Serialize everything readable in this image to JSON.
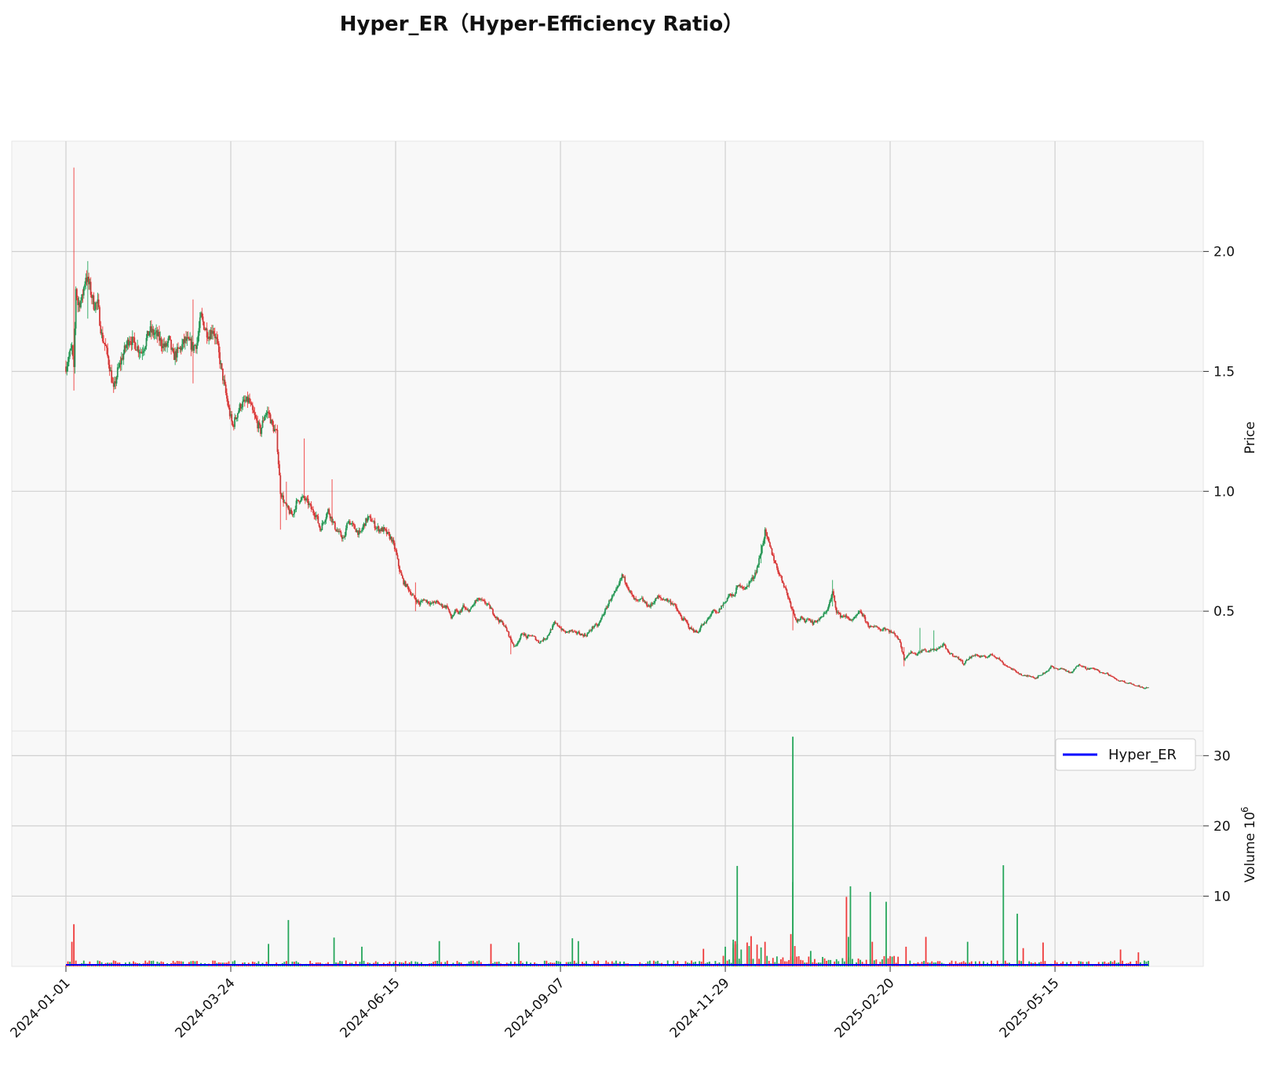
{
  "chart_data": {
    "type": "candlestick",
    "title": "Hyper_ER（Hyper-Efficiency Ratio）",
    "price_panel": {
      "ylabel": "Price",
      "yticks": [
        0.5,
        1.0,
        1.5,
        2.0
      ],
      "ylim": [
        0.0,
        2.46
      ],
      "grid": true
    },
    "volume_panel": {
      "ylabel": "Volume  10",
      "ylabel_exponent": "6",
      "yticks": [
        10,
        20,
        30
      ],
      "ylim": [
        0,
        33.5
      ],
      "grid": true
    },
    "x_ticks": [
      "2024-01-01",
      "2024-03-24",
      "2024-06-15",
      "2024-09-07",
      "2024-11-29",
      "2025-02-20",
      "2025-05-15"
    ],
    "x_range_days": [
      0,
      545
    ],
    "legend": {
      "position": "right",
      "entries": [
        {
          "label": "Hyper_ER",
          "color": "#0000ff"
        }
      ]
    },
    "colors": {
      "up": "#26a65b",
      "down": "#ef3b3b",
      "grid": "#d0d0d0",
      "panel_bg": "#f8f8f8"
    },
    "price_path": [
      [
        0,
        1.52
      ],
      [
        3,
        1.6
      ],
      [
        4,
        1.5
      ],
      [
        5,
        1.85
      ],
      [
        6,
        1.78
      ],
      [
        8,
        1.8
      ],
      [
        10,
        1.9
      ],
      [
        12,
        1.85
      ],
      [
        14,
        1.78
      ],
      [
        16,
        1.78
      ],
      [
        18,
        1.65
      ],
      [
        20,
        1.6
      ],
      [
        22,
        1.52
      ],
      [
        24,
        1.42
      ],
      [
        26,
        1.5
      ],
      [
        28,
        1.55
      ],
      [
        30,
        1.6
      ],
      [
        32,
        1.64
      ],
      [
        34,
        1.62
      ],
      [
        36,
        1.6
      ],
      [
        38,
        1.58
      ],
      [
        40,
        1.62
      ],
      [
        42,
        1.67
      ],
      [
        44,
        1.66
      ],
      [
        46,
        1.65
      ],
      [
        48,
        1.62
      ],
      [
        50,
        1.6
      ],
      [
        52,
        1.63
      ],
      [
        54,
        1.56
      ],
      [
        56,
        1.58
      ],
      [
        58,
        1.6
      ],
      [
        60,
        1.63
      ],
      [
        62,
        1.62
      ],
      [
        64,
        1.6
      ],
      [
        66,
        1.62
      ],
      [
        68,
        1.73
      ],
      [
        70,
        1.68
      ],
      [
        72,
        1.65
      ],
      [
        74,
        1.68
      ],
      [
        76,
        1.62
      ],
      [
        78,
        1.52
      ],
      [
        80,
        1.43
      ],
      [
        82,
        1.34
      ],
      [
        84,
        1.27
      ],
      [
        86,
        1.32
      ],
      [
        88,
        1.36
      ],
      [
        90,
        1.37
      ],
      [
        92,
        1.38
      ],
      [
        94,
        1.33
      ],
      [
        96,
        1.29
      ],
      [
        98,
        1.25
      ],
      [
        100,
        1.32
      ],
      [
        102,
        1.33
      ],
      [
        104,
        1.27
      ],
      [
        106,
        1.24
      ],
      [
        108,
        1.0
      ],
      [
        110,
        0.95
      ],
      [
        112,
        0.92
      ],
      [
        114,
        0.9
      ],
      [
        116,
        0.95
      ],
      [
        118,
        0.97
      ],
      [
        120,
        0.97
      ],
      [
        122,
        0.95
      ],
      [
        124,
        0.92
      ],
      [
        126,
        0.9
      ],
      [
        128,
        0.84
      ],
      [
        130,
        0.88
      ],
      [
        132,
        0.92
      ],
      [
        134,
        0.88
      ],
      [
        136,
        0.84
      ],
      [
        138,
        0.82
      ],
      [
        140,
        0.8
      ],
      [
        142,
        0.88
      ],
      [
        144,
        0.86
      ],
      [
        146,
        0.84
      ],
      [
        148,
        0.82
      ],
      [
        150,
        0.86
      ],
      [
        152,
        0.89
      ],
      [
        154,
        0.88
      ],
      [
        156,
        0.85
      ],
      [
        158,
        0.84
      ],
      [
        160,
        0.84
      ],
      [
        162,
        0.82
      ],
      [
        164,
        0.8
      ],
      [
        166,
        0.75
      ],
      [
        168,
        0.67
      ],
      [
        170,
        0.62
      ],
      [
        172,
        0.6
      ],
      [
        174,
        0.57
      ],
      [
        176,
        0.55
      ],
      [
        178,
        0.53
      ],
      [
        180,
        0.55
      ],
      [
        182,
        0.54
      ],
      [
        184,
        0.53
      ],
      [
        186,
        0.54
      ],
      [
        188,
        0.53
      ],
      [
        190,
        0.52
      ],
      [
        192,
        0.52
      ],
      [
        194,
        0.47
      ],
      [
        196,
        0.5
      ],
      [
        198,
        0.49
      ],
      [
        200,
        0.52
      ],
      [
        202,
        0.5
      ],
      [
        204,
        0.51
      ],
      [
        206,
        0.54
      ],
      [
        208,
        0.55
      ],
      [
        210,
        0.54
      ],
      [
        212,
        0.53
      ],
      [
        214,
        0.51
      ],
      [
        216,
        0.48
      ],
      [
        218,
        0.46
      ],
      [
        220,
        0.45
      ],
      [
        222,
        0.42
      ],
      [
        224,
        0.38
      ],
      [
        226,
        0.35
      ],
      [
        228,
        0.38
      ],
      [
        230,
        0.41
      ],
      [
        232,
        0.39
      ],
      [
        234,
        0.4
      ],
      [
        236,
        0.39
      ],
      [
        238,
        0.37
      ],
      [
        240,
        0.38
      ],
      [
        242,
        0.39
      ],
      [
        244,
        0.42
      ],
      [
        246,
        0.45
      ],
      [
        248,
        0.44
      ],
      [
        250,
        0.42
      ],
      [
        252,
        0.41
      ],
      [
        254,
        0.42
      ],
      [
        256,
        0.41
      ],
      [
        258,
        0.41
      ],
      [
        260,
        0.4
      ],
      [
        262,
        0.4
      ],
      [
        264,
        0.42
      ],
      [
        266,
        0.44
      ],
      [
        268,
        0.44
      ],
      [
        270,
        0.48
      ],
      [
        272,
        0.51
      ],
      [
        274,
        0.55
      ],
      [
        276,
        0.57
      ],
      [
        278,
        0.6
      ],
      [
        280,
        0.65
      ],
      [
        282,
        0.62
      ],
      [
        284,
        0.58
      ],
      [
        286,
        0.55
      ],
      [
        288,
        0.54
      ],
      [
        290,
        0.55
      ],
      [
        292,
        0.53
      ],
      [
        294,
        0.52
      ],
      [
        296,
        0.54
      ],
      [
        298,
        0.56
      ],
      [
        300,
        0.55
      ],
      [
        302,
        0.55
      ],
      [
        304,
        0.54
      ],
      [
        306,
        0.53
      ],
      [
        308,
        0.5
      ],
      [
        310,
        0.47
      ],
      [
        312,
        0.46
      ],
      [
        314,
        0.43
      ],
      [
        316,
        0.42
      ],
      [
        318,
        0.41
      ],
      [
        320,
        0.44
      ],
      [
        322,
        0.45
      ],
      [
        324,
        0.48
      ],
      [
        326,
        0.5
      ],
      [
        328,
        0.49
      ],
      [
        330,
        0.52
      ],
      [
        332,
        0.54
      ],
      [
        334,
        0.57
      ],
      [
        336,
        0.56
      ],
      [
        338,
        0.6
      ],
      [
        340,
        0.61
      ],
      [
        342,
        0.59
      ],
      [
        344,
        0.62
      ],
      [
        346,
        0.64
      ],
      [
        348,
        0.68
      ],
      [
        350,
        0.75
      ],
      [
        352,
        0.83
      ],
      [
        354,
        0.78
      ],
      [
        356,
        0.73
      ],
      [
        358,
        0.68
      ],
      [
        360,
        0.64
      ],
      [
        362,
        0.6
      ],
      [
        364,
        0.55
      ],
      [
        366,
        0.5
      ],
      [
        368,
        0.46
      ],
      [
        370,
        0.47
      ],
      [
        372,
        0.46
      ],
      [
        374,
        0.47
      ],
      [
        376,
        0.45
      ],
      [
        378,
        0.46
      ],
      [
        380,
        0.47
      ],
      [
        382,
        0.49
      ],
      [
        384,
        0.52
      ],
      [
        386,
        0.58
      ],
      [
        388,
        0.5
      ],
      [
        390,
        0.48
      ],
      [
        392,
        0.48
      ],
      [
        394,
        0.47
      ],
      [
        396,
        0.46
      ],
      [
        398,
        0.48
      ],
      [
        400,
        0.5
      ],
      [
        402,
        0.47
      ],
      [
        404,
        0.44
      ],
      [
        406,
        0.43
      ],
      [
        408,
        0.44
      ],
      [
        410,
        0.42
      ],
      [
        412,
        0.43
      ],
      [
        414,
        0.42
      ],
      [
        416,
        0.41
      ],
      [
        418,
        0.4
      ],
      [
        420,
        0.37
      ],
      [
        422,
        0.3
      ],
      [
        424,
        0.32
      ],
      [
        426,
        0.33
      ],
      [
        428,
        0.32
      ],
      [
        430,
        0.33
      ],
      [
        432,
        0.34
      ],
      [
        434,
        0.33
      ],
      [
        436,
        0.34
      ],
      [
        438,
        0.34
      ],
      [
        440,
        0.35
      ],
      [
        442,
        0.36
      ],
      [
        444,
        0.33
      ],
      [
        446,
        0.32
      ],
      [
        448,
        0.31
      ],
      [
        450,
        0.3
      ],
      [
        452,
        0.28
      ],
      [
        454,
        0.3
      ],
      [
        456,
        0.31
      ],
      [
        458,
        0.32
      ],
      [
        460,
        0.31
      ],
      [
        462,
        0.31
      ],
      [
        464,
        0.31
      ],
      [
        466,
        0.32
      ],
      [
        468,
        0.31
      ],
      [
        470,
        0.3
      ],
      [
        472,
        0.28
      ],
      [
        474,
        0.27
      ],
      [
        476,
        0.26
      ],
      [
        478,
        0.25
      ],
      [
        480,
        0.24
      ],
      [
        482,
        0.23
      ],
      [
        484,
        0.23
      ],
      [
        486,
        0.23
      ],
      [
        488,
        0.22
      ],
      [
        490,
        0.23
      ],
      [
        492,
        0.24
      ],
      [
        494,
        0.25
      ],
      [
        496,
        0.27
      ],
      [
        498,
        0.26
      ],
      [
        500,
        0.26
      ],
      [
        502,
        0.26
      ],
      [
        504,
        0.25
      ],
      [
        506,
        0.24
      ],
      [
        508,
        0.26
      ],
      [
        510,
        0.28
      ],
      [
        512,
        0.27
      ],
      [
        514,
        0.26
      ],
      [
        516,
        0.26
      ],
      [
        518,
        0.26
      ],
      [
        520,
        0.25
      ],
      [
        522,
        0.24
      ],
      [
        524,
        0.24
      ],
      [
        526,
        0.23
      ],
      [
        528,
        0.22
      ],
      [
        530,
        0.21
      ],
      [
        532,
        0.21
      ],
      [
        534,
        0.2
      ],
      [
        536,
        0.2
      ],
      [
        538,
        0.19
      ],
      [
        540,
        0.19
      ],
      [
        542,
        0.18
      ],
      [
        544,
        0.18
      ]
    ],
    "price_spikes": [
      {
        "day": 4,
        "high": 2.35,
        "low": 1.42
      },
      {
        "day": 11,
        "high": 1.96,
        "low": 1.72
      },
      {
        "day": 64,
        "high": 1.8,
        "low": 1.45
      },
      {
        "day": 108,
        "high": 1.03,
        "low": 0.84
      },
      {
        "day": 111,
        "high": 1.04,
        "low": 0.88
      },
      {
        "day": 120,
        "high": 1.22,
        "low": 0.98
      },
      {
        "day": 134,
        "high": 1.05,
        "low": 0.86
      },
      {
        "day": 176,
        "high": 0.62,
        "low": 0.5
      },
      {
        "day": 224,
        "high": 0.4,
        "low": 0.32
      },
      {
        "day": 350,
        "high": 0.78,
        "low": 0.7
      },
      {
        "day": 352,
        "high": 0.85,
        "low": 0.78
      },
      {
        "day": 366,
        "high": 0.52,
        "low": 0.42
      },
      {
        "day": 386,
        "high": 0.63,
        "low": 0.52
      },
      {
        "day": 422,
        "high": 0.35,
        "low": 0.27
      },
      {
        "day": 430,
        "high": 0.43,
        "low": 0.32
      },
      {
        "day": 437,
        "high": 0.42,
        "low": 0.33
      }
    ],
    "volume_spikes": [
      {
        "day": 4,
        "value": 6.0,
        "color": "down"
      },
      {
        "day": 3,
        "value": 3.5,
        "color": "down"
      },
      {
        "day": 102,
        "value": 3.2,
        "color": "up"
      },
      {
        "day": 112,
        "value": 6.6,
        "color": "up"
      },
      {
        "day": 135,
        "value": 4.1,
        "color": "up"
      },
      {
        "day": 149,
        "value": 2.8,
        "color": "up"
      },
      {
        "day": 188,
        "value": 3.6,
        "color": "up"
      },
      {
        "day": 214,
        "value": 3.2,
        "color": "down"
      },
      {
        "day": 228,
        "value": 3.4,
        "color": "up"
      },
      {
        "day": 255,
        "value": 4.0,
        "color": "up"
      },
      {
        "day": 258,
        "value": 3.6,
        "color": "up"
      },
      {
        "day": 336,
        "value": 3.8,
        "color": "up"
      },
      {
        "day": 343,
        "value": 3.4,
        "color": "down"
      },
      {
        "day": 337,
        "value": 3.1,
        "color": "down"
      },
      {
        "day": 344,
        "value": 2.9,
        "color": "up"
      },
      {
        "day": 337,
        "value": 3.6,
        "color": "down"
      },
      {
        "day": 336,
        "value": 3.3,
        "color": "up"
      },
      {
        "day": 336,
        "value": 2.6,
        "color": "up"
      },
      {
        "day": 321,
        "value": 2.5,
        "color": "down"
      },
      {
        "day": 332,
        "value": 2.8,
        "color": "up"
      },
      {
        "day": 338,
        "value": 3.2,
        "color": "down"
      },
      {
        "day": 340,
        "value": 2.4,
        "color": "up"
      },
      {
        "day": 338,
        "value": 14.3,
        "color": "up"
      },
      {
        "day": 345,
        "value": 4.3,
        "color": "down"
      },
      {
        "day": 348,
        "value": 3.1,
        "color": "down"
      },
      {
        "day": 350,
        "value": 2.7,
        "color": "up"
      },
      {
        "day": 352,
        "value": 3.5,
        "color": "down"
      },
      {
        "day": 366,
        "value": 32.7,
        "color": "up"
      },
      {
        "day": 366,
        "value": 12.0,
        "color": "up"
      },
      {
        "day": 365,
        "value": 4.6,
        "color": "down"
      },
      {
        "day": 367,
        "value": 2.9,
        "color": "down"
      },
      {
        "day": 375,
        "value": 2.2,
        "color": "up"
      },
      {
        "day": 393,
        "value": 9.9,
        "color": "down"
      },
      {
        "day": 395,
        "value": 11.4,
        "color": "up"
      },
      {
        "day": 394,
        "value": 4.2,
        "color": "up"
      },
      {
        "day": 405,
        "value": 10.6,
        "color": "up"
      },
      {
        "day": 406,
        "value": 3.5,
        "color": "down"
      },
      {
        "day": 413,
        "value": 9.2,
        "color": "up"
      },
      {
        "day": 423,
        "value": 2.8,
        "color": "down"
      },
      {
        "day": 433,
        "value": 4.2,
        "color": "down"
      },
      {
        "day": 454,
        "value": 3.5,
        "color": "up"
      },
      {
        "day": 472,
        "value": 14.4,
        "color": "up"
      },
      {
        "day": 479,
        "value": 7.5,
        "color": "up"
      },
      {
        "day": 482,
        "value": 2.6,
        "color": "down"
      },
      {
        "day": 492,
        "value": 3.4,
        "color": "down"
      },
      {
        "day": 531,
        "value": 2.4,
        "color": "down"
      },
      {
        "day": 540,
        "value": 2.0,
        "color": "down"
      }
    ],
    "volume_base": 0.5
  }
}
